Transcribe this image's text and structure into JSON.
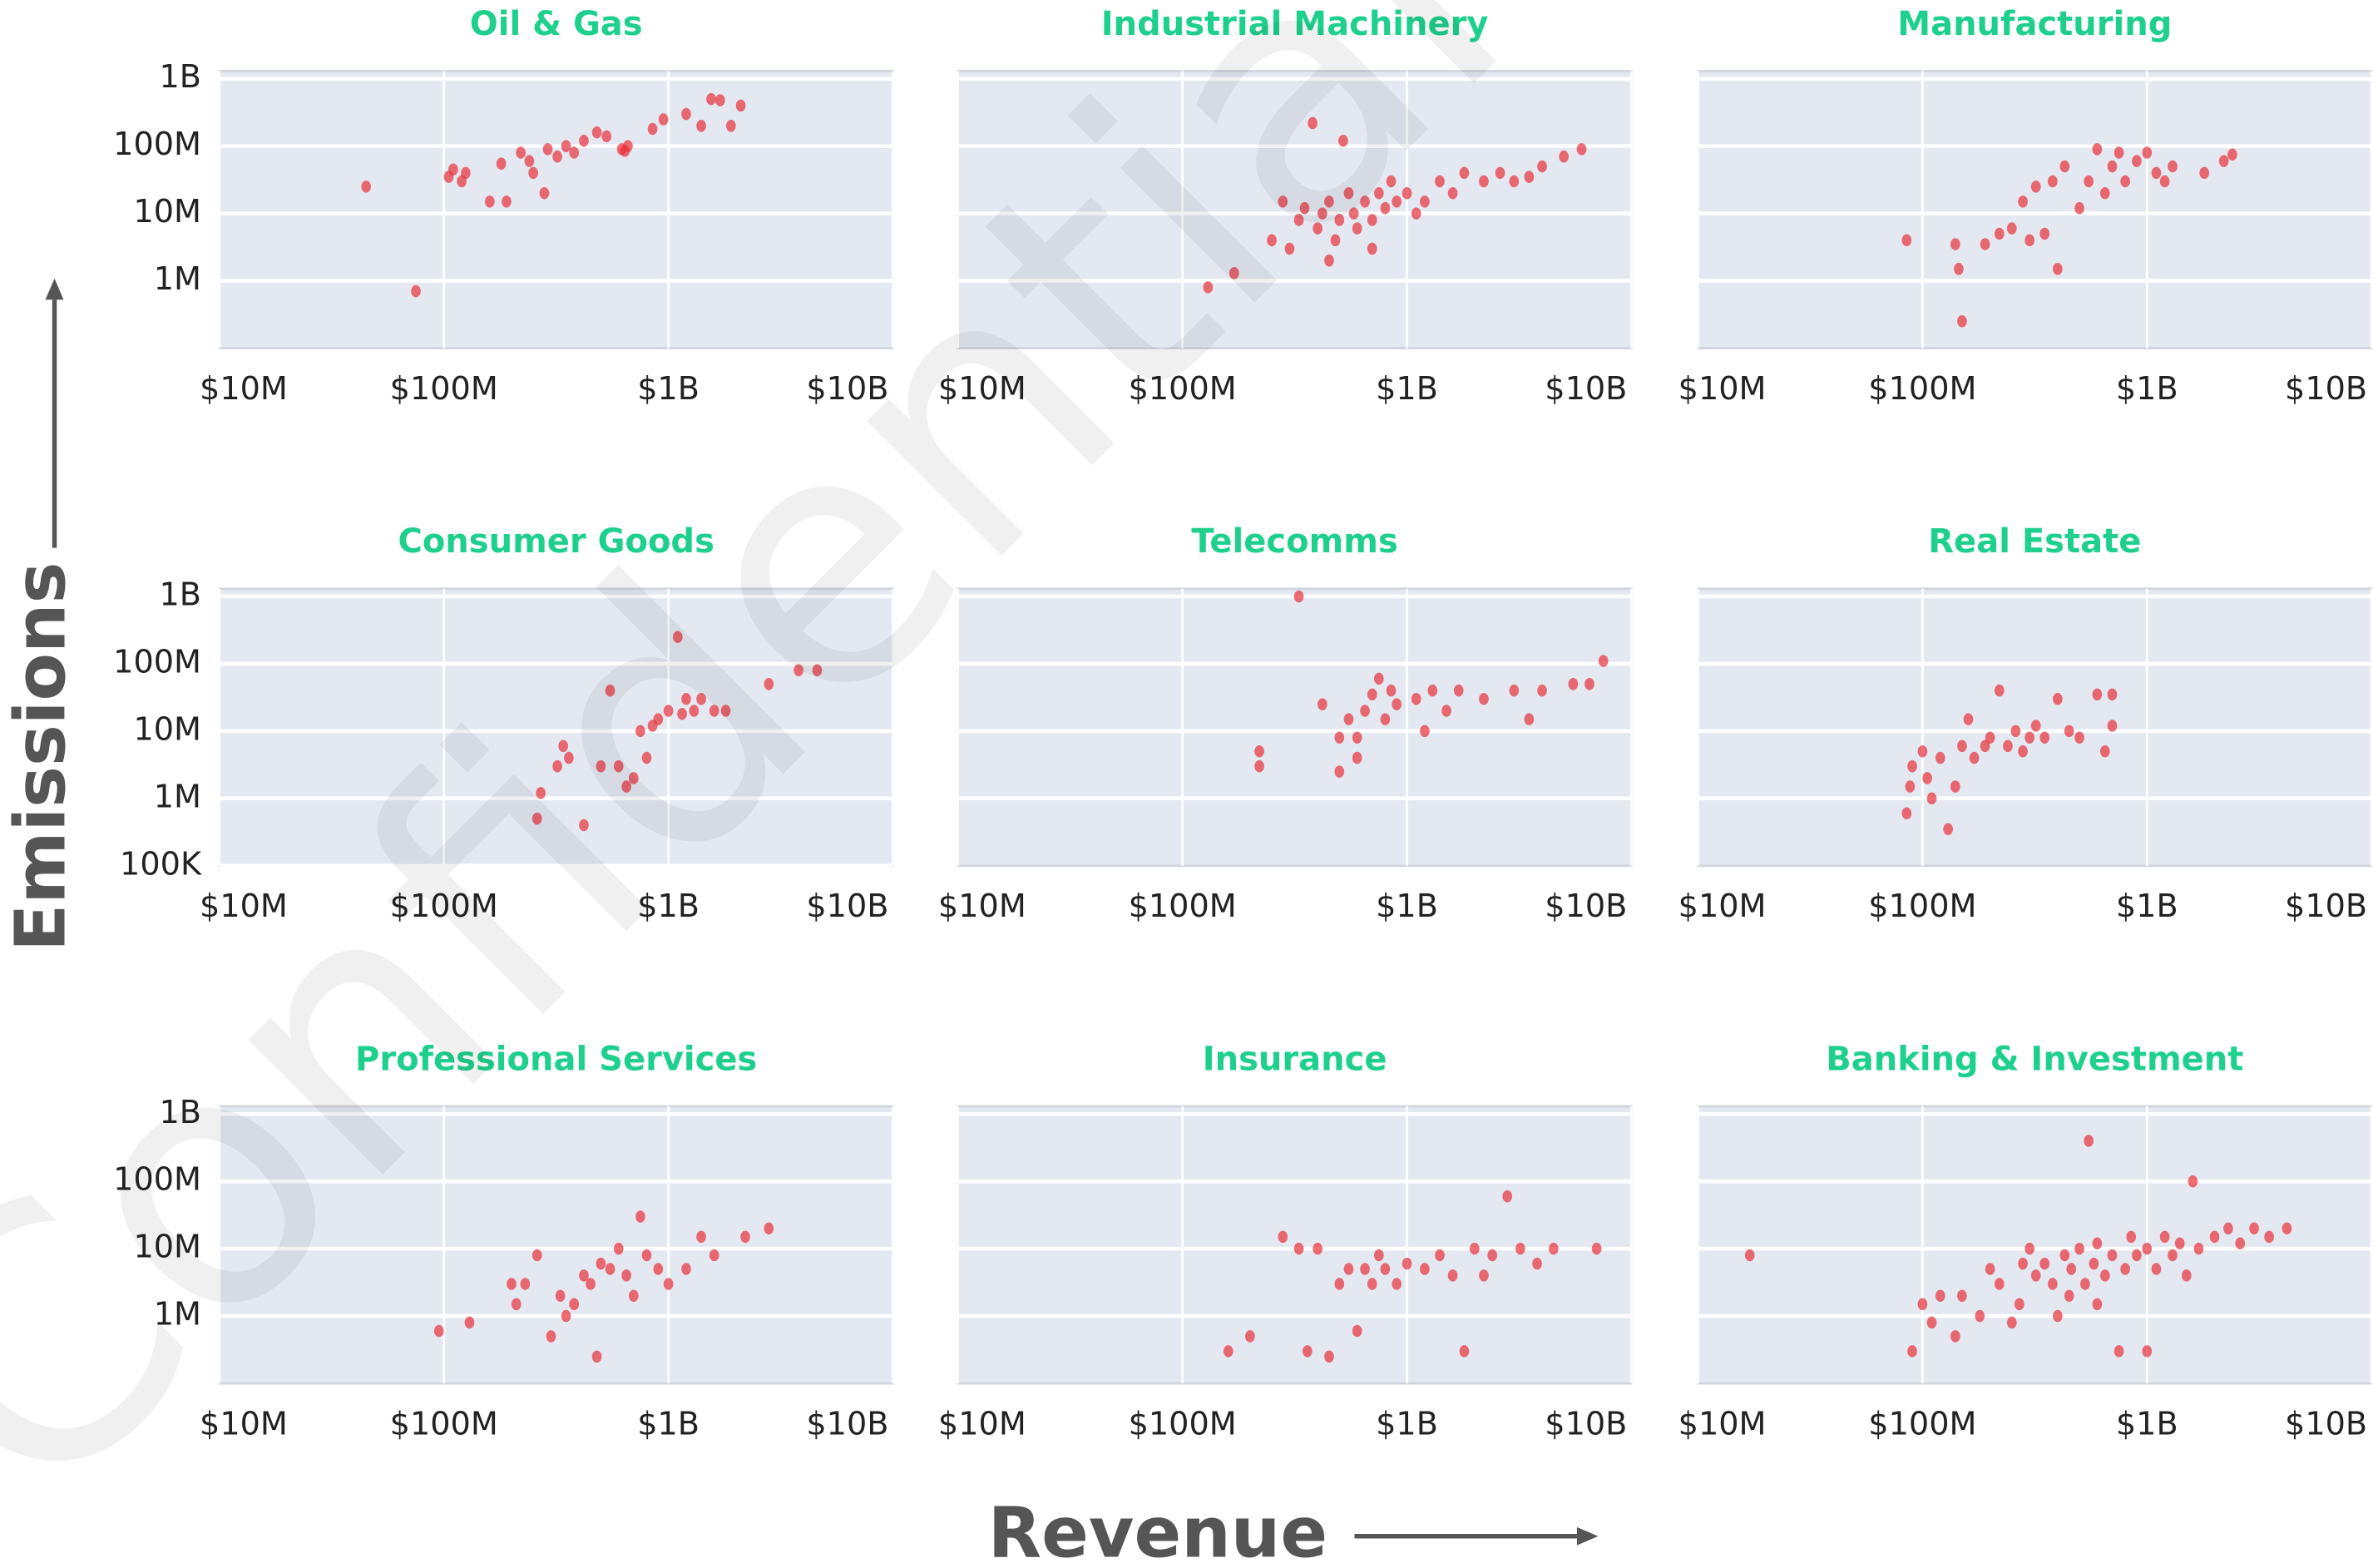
{
  "y_label": "Emissions",
  "x_label": "Revenue",
  "watermark": "Confidential",
  "chart_data": [
    {
      "type": "scatter",
      "title": "Oil & Gas",
      "color": "#e8303a",
      "log_x": true,
      "log_y": true,
      "grid": true,
      "ytick_labels": true,
      "xlim": [
        10000000,
        10000000000
      ],
      "ylim": [
        100000,
        1300000000
      ],
      "xticks": [
        {
          "value": 10000000,
          "label": "$10M"
        },
        {
          "value": 100000000,
          "label": "$100M"
        },
        {
          "value": 1000000000,
          "label": "$1B"
        },
        {
          "value": 10000000000,
          "label": "$10B"
        }
      ],
      "yticks": [
        {
          "value": 1000000,
          "label": "1M"
        },
        {
          "value": 10000000,
          "label": "10M"
        },
        {
          "value": 100000000,
          "label": "100M"
        },
        {
          "value": 1000000000,
          "label": "1B"
        }
      ],
      "x": [
        45000000,
        75000000,
        105000000,
        110000000,
        120000000,
        125000000,
        160000000,
        190000000,
        180000000,
        220000000,
        240000000,
        250000000,
        280000000,
        290000000,
        320000000,
        350000000,
        380000000,
        420000000,
        480000000,
        530000000,
        620000000,
        660000000,
        640000000,
        850000000,
        950000000,
        1200000000,
        1400000000,
        1550000000,
        1700000000,
        1900000000,
        2100000000
      ],
      "values": [
        25000000,
        700000,
        35000000,
        45000000,
        30000000,
        40000000,
        15000000,
        15000000,
        55000000,
        80000000,
        60000000,
        40000000,
        20000000,
        90000000,
        70000000,
        100000000,
        80000000,
        120000000,
        160000000,
        140000000,
        90000000,
        100000000,
        85000000,
        180000000,
        250000000,
        300000000,
        200000000,
        500000000,
        480000000,
        200000000,
        400000000
      ]
    },
    {
      "type": "scatter",
      "title": "Industrial Machinery",
      "color": "#e8303a",
      "log_x": true,
      "log_y": true,
      "grid": true,
      "ytick_labels": false,
      "xlim": [
        10000000,
        10000000000
      ],
      "ylim": [
        100000,
        1300000000
      ],
      "xticks": [
        {
          "value": 10000000,
          "label": "$10M"
        },
        {
          "value": 100000000,
          "label": "$100M"
        },
        {
          "value": 1000000000,
          "label": "$1B"
        },
        {
          "value": 10000000000,
          "label": "$10B"
        }
      ],
      "yticks": [
        1000000,
        10000000,
        100000000,
        1000000000
      ],
      "x": [
        130000000,
        170000000,
        250000000,
        280000000,
        300000000,
        330000000,
        350000000,
        380000000,
        400000000,
        420000000,
        450000000,
        480000000,
        500000000,
        520000000,
        550000000,
        580000000,
        600000000,
        650000000,
        700000000,
        750000000,
        800000000,
        850000000,
        900000000,
        1000000000,
        1200000000,
        1400000000,
        1600000000,
        1800000000,
        2200000000,
        2600000000,
        3000000000,
        3500000000,
        4000000000,
        5000000000,
        6000000000,
        450000000,
        700000000,
        1100000000
      ],
      "values": [
        800000,
        1300000,
        4000000,
        15000000,
        3000000,
        8000000,
        12000000,
        220000000,
        6000000,
        10000000,
        15000000,
        4000000,
        8000000,
        120000000,
        20000000,
        10000000,
        6000000,
        15000000,
        8000000,
        20000000,
        12000000,
        30000000,
        15000000,
        20000000,
        15000000,
        30000000,
        20000000,
        40000000,
        30000000,
        40000000,
        30000000,
        35000000,
        50000000,
        70000000,
        90000000,
        2000000,
        3000000,
        10000000
      ]
    },
    {
      "type": "scatter",
      "title": "Manufacturing",
      "color": "#e8303a",
      "log_x": true,
      "log_y": true,
      "grid": true,
      "ytick_labels": false,
      "xlim": [
        10000000,
        10000000000
      ],
      "ylim": [
        100000,
        1300000000
      ],
      "xticks": [
        {
          "value": 10000000,
          "label": "$10M"
        },
        {
          "value": 100000000,
          "label": "$100M"
        },
        {
          "value": 1000000000,
          "label": "$1B"
        },
        {
          "value": 10000000000,
          "label": "$10B"
        }
      ],
      "yticks": [
        1000000,
        10000000,
        100000000,
        1000000000
      ],
      "x": [
        85000000,
        140000000,
        145000000,
        150000000,
        190000000,
        220000000,
        250000000,
        280000000,
        300000000,
        320000000,
        350000000,
        380000000,
        400000000,
        430000000,
        500000000,
        550000000,
        600000000,
        650000000,
        700000000,
        750000000,
        800000000,
        900000000,
        1000000000,
        1100000000,
        1200000000,
        1300000000,
        1800000000,
        2200000000,
        2400000000
      ],
      "values": [
        4000000,
        3500000,
        1500000,
        250000,
        3500000,
        5000000,
        6000000,
        15000000,
        4000000,
        25000000,
        5000000,
        30000000,
        1500000,
        50000000,
        12000000,
        30000000,
        90000000,
        20000000,
        50000000,
        80000000,
        30000000,
        60000000,
        80000000,
        40000000,
        30000000,
        50000000,
        40000000,
        60000000,
        75000000
      ]
    },
    {
      "type": "scatter",
      "title": "Consumer Goods",
      "color": "#e8303a",
      "log_x": true,
      "log_y": true,
      "grid": true,
      "ytick_labels": true,
      "xlim": [
        10000000,
        10000000000
      ],
      "ylim": [
        100000,
        1300000000
      ],
      "xticks": [
        {
          "value": 10000000,
          "label": "$10M"
        },
        {
          "value": 100000000,
          "label": "$100M"
        },
        {
          "value": 1000000000,
          "label": "$1B"
        },
        {
          "value": 10000000000,
          "label": "$10B"
        }
      ],
      "yticks": [
        {
          "value": 100000,
          "label": "100K"
        },
        {
          "value": 1000000,
          "label": "1M"
        },
        {
          "value": 10000000,
          "label": "10M"
        },
        {
          "value": 100000000,
          "label": "100M"
        },
        {
          "value": 1000000000,
          "label": "1B"
        }
      ],
      "x": [
        260000000,
        270000000,
        320000000,
        340000000,
        360000000,
        420000000,
        500000000,
        550000000,
        600000000,
        650000000,
        700000000,
        750000000,
        800000000,
        850000000,
        900000000,
        1000000000,
        1100000000,
        1150000000,
        1200000000,
        1300000000,
        1400000000,
        1600000000,
        1800000000,
        2800000000,
        3800000000,
        4600000000
      ],
      "values": [
        500000,
        1200000,
        3000000,
        6000000,
        4000000,
        400000,
        3000000,
        40000000,
        3000000,
        1500000,
        2000000,
        10000000,
        4000000,
        12000000,
        15000000,
        20000000,
        250000000,
        18000000,
        30000000,
        20000000,
        30000000,
        20000000,
        20000000,
        50000000,
        80000000,
        80000000
      ]
    },
    {
      "type": "scatter",
      "title": "Telecomms",
      "color": "#e8303a",
      "log_x": true,
      "log_y": true,
      "grid": true,
      "ytick_labels": false,
      "xlim": [
        10000000,
        10000000000
      ],
      "ylim": [
        100000,
        1300000000
      ],
      "xticks": [
        {
          "value": 10000000,
          "label": "$10M"
        },
        {
          "value": 100000000,
          "label": "$100M"
        },
        {
          "value": 1000000000,
          "label": "$1B"
        },
        {
          "value": 10000000000,
          "label": "$10B"
        }
      ],
      "yticks": [
        1000000,
        10000000,
        100000000,
        1000000000
      ],
      "x": [
        220000000,
        220000000,
        330000000,
        420000000,
        500000000,
        500000000,
        550000000,
        600000000,
        650000000,
        700000000,
        750000000,
        800000000,
        850000000,
        900000000,
        1100000000,
        1200000000,
        1300000000,
        1500000000,
        1700000000,
        2200000000,
        3000000000,
        3500000000,
        4000000000,
        5500000000,
        6500000000,
        7500000000,
        600000000
      ],
      "values": [
        3000000,
        5000000,
        1000000000,
        25000000,
        8000000,
        2500000,
        15000000,
        8000000,
        20000000,
        35000000,
        60000000,
        15000000,
        40000000,
        25000000,
        30000000,
        10000000,
        40000000,
        20000000,
        40000000,
        30000000,
        40000000,
        15000000,
        40000000,
        50000000,
        50000000,
        110000000,
        4000000
      ]
    },
    {
      "type": "scatter",
      "title": "Real Estate",
      "color": "#e8303a",
      "log_x": true,
      "log_y": true,
      "grid": true,
      "ytick_labels": false,
      "xlim": [
        10000000,
        10000000000
      ],
      "ylim": [
        100000,
        1300000000
      ],
      "xticks": [
        {
          "value": 10000000,
          "label": "$10M"
        },
        {
          "value": 100000000,
          "label": "$100M"
        },
        {
          "value": 1000000000,
          "label": "$1B"
        },
        {
          "value": 10000000000,
          "label": "$10B"
        }
      ],
      "yticks": [
        1000000,
        10000000,
        100000000,
        1000000000
      ],
      "x": [
        85000000,
        88000000,
        90000000,
        100000000,
        105000000,
        110000000,
        120000000,
        130000000,
        140000000,
        150000000,
        160000000,
        170000000,
        190000000,
        200000000,
        220000000,
        240000000,
        260000000,
        280000000,
        300000000,
        320000000,
        350000000,
        400000000,
        450000000,
        500000000,
        600000000,
        650000000,
        700000000,
        700000000
      ],
      "values": [
        600000,
        1500000,
        3000000,
        5000000,
        2000000,
        1000000,
        4000000,
        350000,
        1500000,
        6000000,
        15000000,
        4000000,
        6000000,
        8000000,
        40000000,
        6000000,
        10000000,
        5000000,
        8000000,
        12000000,
        8000000,
        30000000,
        10000000,
        8000000,
        35000000,
        5000000,
        12000000,
        35000000
      ]
    },
    {
      "type": "scatter",
      "title": "Professional Services",
      "color": "#e8303a",
      "log_x": true,
      "log_y": true,
      "grid": true,
      "ytick_labels": true,
      "xlim": [
        10000000,
        10000000000
      ],
      "ylim": [
        100000,
        1300000000
      ],
      "xticks": [
        {
          "value": 10000000,
          "label": "$10M"
        },
        {
          "value": 100000000,
          "label": "$100M"
        },
        {
          "value": 1000000000,
          "label": "$1B"
        },
        {
          "value": 10000000000,
          "label": "$10B"
        }
      ],
      "yticks": [
        {
          "value": 1000000,
          "label": "1M"
        },
        {
          "value": 10000000,
          "label": "10M"
        },
        {
          "value": 100000000,
          "label": "100M"
        },
        {
          "value": 1000000000,
          "label": "1B"
        }
      ],
      "x": [
        95000000,
        130000000,
        200000000,
        210000000,
        230000000,
        260000000,
        300000000,
        330000000,
        350000000,
        380000000,
        420000000,
        450000000,
        480000000,
        500000000,
        550000000,
        600000000,
        650000000,
        700000000,
        750000000,
        800000000,
        900000000,
        1000000000,
        1200000000,
        1400000000,
        1600000000,
        2200000000,
        2800000000
      ],
      "values": [
        600000,
        800000,
        3000000,
        1500000,
        3000000,
        8000000,
        500000,
        2000000,
        1000000,
        1500000,
        4000000,
        3000000,
        250000,
        6000000,
        5000000,
        10000000,
        4000000,
        2000000,
        30000000,
        8000000,
        5000000,
        3000000,
        5000000,
        15000000,
        8000000,
        15000000,
        20000000
      ]
    },
    {
      "type": "scatter",
      "title": "Insurance",
      "color": "#e8303a",
      "log_x": true,
      "log_y": true,
      "grid": true,
      "ytick_labels": false,
      "xlim": [
        10000000,
        10000000000
      ],
      "ylim": [
        100000,
        1300000000
      ],
      "xticks": [
        {
          "value": 10000000,
          "label": "$10M"
        },
        {
          "value": 100000000,
          "label": "$100M"
        },
        {
          "value": 1000000000,
          "label": "$1B"
        },
        {
          "value": 10000000000,
          "label": "$10B"
        }
      ],
      "yticks": [
        1000000,
        10000000,
        100000000,
        1000000000
      ],
      "x": [
        160000000,
        200000000,
        280000000,
        330000000,
        360000000,
        400000000,
        450000000,
        500000000,
        550000000,
        600000000,
        650000000,
        700000000,
        750000000,
        800000000,
        900000000,
        1000000000,
        1200000000,
        1400000000,
        1600000000,
        1800000000,
        2000000000,
        2400000000,
        2800000000,
        3200000000,
        3800000000,
        4500000000,
        7000000000,
        2200000000
      ],
      "values": [
        300000,
        500000,
        15000000,
        10000000,
        300000,
        10000000,
        250000,
        3000000,
        5000000,
        600000,
        5000000,
        3000000,
        8000000,
        5000000,
        3000000,
        6000000,
        5000000,
        8000000,
        4000000,
        300000,
        10000000,
        8000000,
        60000000,
        10000000,
        6000000,
        10000000,
        10000000,
        4000000
      ]
    },
    {
      "type": "scatter",
      "title": "Banking & Investment",
      "color": "#e8303a",
      "log_x": true,
      "log_y": true,
      "grid": true,
      "ytick_labels": false,
      "xlim": [
        10000000,
        10000000000
      ],
      "ylim": [
        100000,
        1300000000
      ],
      "xticks": [
        {
          "value": 10000000,
          "label": "$10M"
        },
        {
          "value": 100000000,
          "label": "$100M"
        },
        {
          "value": 1000000000,
          "label": "$1B"
        },
        {
          "value": 10000000000,
          "label": "$10B"
        }
      ],
      "yticks": [
        1000000,
        10000000,
        100000000,
        1000000000
      ],
      "x": [
        17000000,
        100000000,
        110000000,
        120000000,
        140000000,
        150000000,
        180000000,
        200000000,
        220000000,
        250000000,
        270000000,
        300000000,
        320000000,
        350000000,
        380000000,
        400000000,
        430000000,
        460000000,
        500000000,
        530000000,
        550000000,
        580000000,
        600000000,
        650000000,
        700000000,
        750000000,
        800000000,
        850000000,
        900000000,
        1000000000,
        1000000000,
        1100000000,
        1200000000,
        1300000000,
        1400000000,
        1600000000,
        1700000000,
        2000000000,
        2300000000,
        2600000000,
        3000000000,
        3500000000,
        4200000000,
        1500000000,
        600000000,
        280000000,
        90000000,
        450000000
      ],
      "values": [
        8000000,
        1500000,
        800000,
        2000000,
        500000,
        2000000,
        1000000,
        5000000,
        3000000,
        800000,
        1500000,
        10000000,
        4000000,
        6000000,
        3000000,
        1000000,
        8000000,
        5000000,
        10000000,
        3000000,
        400000000,
        6000000,
        12000000,
        4000000,
        8000000,
        300000,
        5000000,
        15000000,
        8000000,
        10000000,
        300000,
        5000000,
        15000000,
        8000000,
        12000000,
        100000000,
        10000000,
        15000000,
        20000000,
        12000000,
        20000000,
        15000000,
        20000000,
        4000000,
        1500000,
        6000000,
        300000,
        2000000
      ]
    }
  ]
}
